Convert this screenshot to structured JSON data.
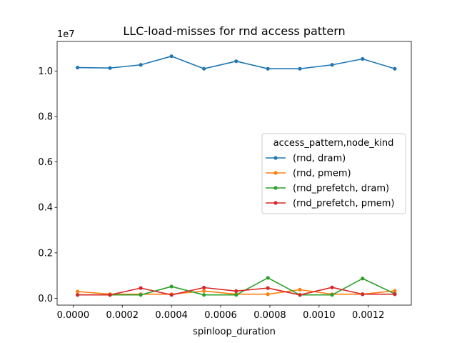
{
  "chart_data": {
    "type": "line",
    "title": "LLC-load-misses for rnd access pattern",
    "xlabel": "spinloop_duration",
    "ylabel": "",
    "offset_label": "1e7",
    "xlim": [
      -6.5e-05,
      0.001375
    ],
    "ylim": [
      -0.3,
      11.3
    ],
    "y_scale_note": "values in units of 1e7",
    "x_ticks": [
      0.0,
      0.0002,
      0.0004,
      0.0006,
      0.0008,
      0.001,
      0.0012
    ],
    "x_tick_labels": [
      "0.0000",
      "0.0002",
      "0.0004",
      "0.0006",
      "0.0008",
      "0.0010",
      "0.0012"
    ],
    "y_ticks": [
      0,
      2,
      4,
      6,
      8,
      10
    ],
    "y_tick_labels": [
      "0.0",
      "0.2",
      "0.4",
      "0.6",
      "0.8",
      "1.0"
    ],
    "grid": false,
    "legend": {
      "title": "access_pattern,node_kind",
      "position": "center-right"
    },
    "x": [
      1.8e-05,
      0.00015,
      0.000275,
      0.0004,
      0.000532,
      0.000663,
      0.000792,
      0.000922,
      0.001053,
      0.001177,
      0.001308
    ],
    "series": [
      {
        "name": "(rnd, dram)",
        "color": "#1f77b4",
        "values": [
          10.15,
          10.13,
          10.27,
          10.65,
          10.1,
          10.43,
          10.1,
          10.1,
          10.27,
          10.53,
          10.1
        ]
      },
      {
        "name": "(rnd, pmem)",
        "color": "#ff7f0e",
        "values": [
          0.3,
          0.18,
          0.18,
          0.18,
          0.32,
          0.18,
          0.18,
          0.38,
          0.18,
          0.18,
          0.33
        ]
      },
      {
        "name": "(rnd_prefetch, dram)",
        "color": "#2ca02c",
        "values": [
          0.15,
          0.15,
          0.15,
          0.52,
          0.15,
          0.15,
          0.9,
          0.15,
          0.15,
          0.87,
          0.2
        ]
      },
      {
        "name": "(rnd_prefetch, pmem)",
        "color": "#d62728",
        "values": [
          0.15,
          0.15,
          0.45,
          0.15,
          0.47,
          0.32,
          0.45,
          0.15,
          0.48,
          0.18,
          0.18
        ]
      }
    ]
  }
}
